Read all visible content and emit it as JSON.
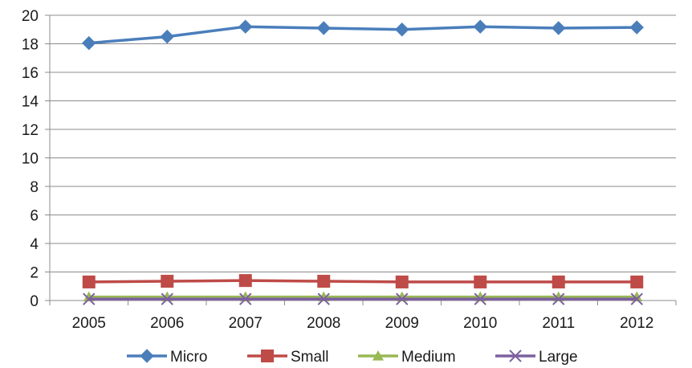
{
  "chart_data": {
    "type": "line",
    "title": "",
    "xlabel": "",
    "ylabel": "",
    "categories": [
      "2005",
      "2006",
      "2007",
      "2008",
      "2009",
      "2010",
      "2011",
      "2012"
    ],
    "ylim": [
      0,
      20
    ],
    "yticks": [
      0,
      2,
      4,
      6,
      8,
      10,
      12,
      14,
      16,
      18,
      20
    ],
    "grid": true,
    "legend_position": "bottom",
    "series": [
      {
        "name": "Micro",
        "marker": "diamond",
        "color": "#4a7ebb",
        "values": [
          18.05,
          18.5,
          19.2,
          19.1,
          19.0,
          19.2,
          19.1,
          19.15
        ]
      },
      {
        "name": "Small",
        "marker": "square",
        "color": "#be4b48",
        "values": [
          1.3,
          1.35,
          1.4,
          1.35,
          1.3,
          1.3,
          1.3,
          1.3
        ]
      },
      {
        "name": "Medium",
        "marker": "triangle",
        "color": "#98b954",
        "values": [
          0.25,
          0.25,
          0.25,
          0.25,
          0.25,
          0.25,
          0.25,
          0.25
        ]
      },
      {
        "name": "Large",
        "marker": "x",
        "color": "#7d60a0",
        "values": [
          0.1,
          0.1,
          0.1,
          0.1,
          0.1,
          0.1,
          0.1,
          0.1
        ]
      }
    ]
  }
}
